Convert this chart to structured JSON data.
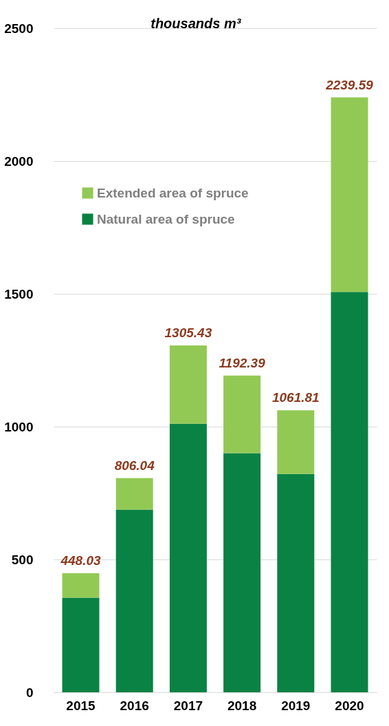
{
  "chart_data": {
    "type": "bar",
    "stacked": true,
    "ylabel": "thousands m³",
    "categories": [
      "2015",
      "2016",
      "2017",
      "2018",
      "2019",
      "2020"
    ],
    "series": [
      {
        "name": "Natural area of spruce",
        "color": "#0a8243",
        "values": [
          356,
          688,
          1011,
          900,
          822,
          1507
        ]
      },
      {
        "name": "Extended area of spruce",
        "color": "#92c955",
        "values": [
          92.03,
          118.04,
          294.43,
          292.39,
          239.81,
          732.59
        ]
      }
    ],
    "totals": [
      "448.03",
      "806.04",
      "1305.43",
      "1192.39",
      "1061.81",
      "2239.59"
    ],
    "ylim": [
      0,
      2500
    ],
    "yticks": [
      0,
      500,
      1000,
      1500,
      2000,
      2500
    ],
    "grid": "y",
    "legend": "top left"
  }
}
